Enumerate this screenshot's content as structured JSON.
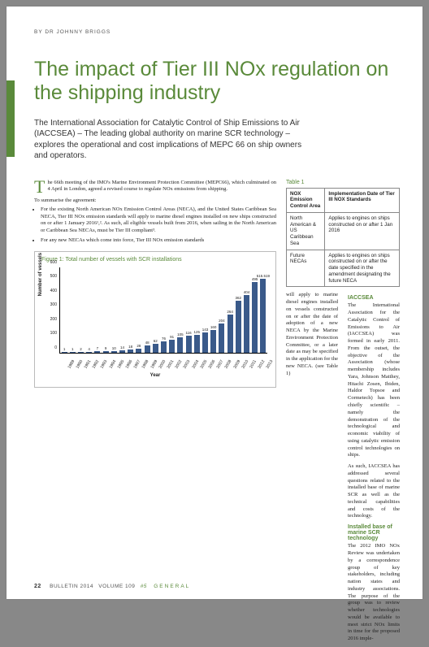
{
  "byline": "BY DR JOHNNY BRIGGS",
  "title": "The impact of Tier III NOx regulation on the shipping industry",
  "subtitle": "The International Association for Catalytic Control of Ship Emissions to Air (IACCSEA) – The leading global authority on marine SCR technology – explores the operational and cost implications of MEPC 66 on ship owners and operators.",
  "intro_first": "T",
  "intro_rest": "he 66th meeting of the IMO's Marine Environment Protection Committee (MEPC66), which culminated on 4 April in London, agreed a revised course to regulate NOx emissions from shipping.",
  "summary_label": "To summarise the agreement:",
  "bullets": [
    "For the existing North American NOx Emission Control Areas (NECA), and the United States Caribbean Sea NECA, Tier III NOx emission standards will apply to marine diesel engines installed on new ships constructed on or after 1 January 2016¹,². As such, all eligible vessels built from 2016, when sailing in the North American or Caribbean Sea NECAs, must be Tier III compliant³.",
    "For any new NECAs which come into force, Tier III NOx emission standards"
  ],
  "table_label": "Table 1",
  "table_headers": [
    "NOX Emission Control Area",
    "Implementation Date of Tier III NOX Standards"
  ],
  "table_rows": [
    [
      "North American & US Caribbean Sea",
      "Applies to engines on ships constructed on or after 1 Jan 2016"
    ],
    [
      "Future NECAs",
      "Applies to engines on ships constructed on or after the date specified in the amendment designating the future NECA"
    ]
  ],
  "col2_para": "will apply to marine diesel engines installed on vessels constructed on or after the date of adoption of a new NECA by the Marine Environment Protection Committee, or a later date as may be specified in the application for the new NECA. (see Table 1)",
  "iaccsea_head": "IACCSEA",
  "iaccsea_para1": "The International Association for the Catalytic Control of Emissions to Air (IACCSEA) was formed in early 2011. From the outset, the objective of the Association (whose membership includes Yara, Johnson Matthey, Hitachi Zosen, Ibiden, Haldor Topsoe and Cormetech) has been chiefly scientific – namely the demonstration of the technological and economic viability of using catalytic emission control technologies on ships.",
  "iaccsea_para2": "As such, IACCSEA has addressed several questions related to the installed base of marine SCR as well as the technical capabilities and costs of the technology.",
  "installed_head": "Installed base of marine SCR technology",
  "installed_para": "The 2012 IMO NOx Review was undertaken by a correspondence group of key stakeholders, including nation states and industry associations. The purpose of the group was to review whether technologies would be available to meet strict NOx limits in time for the proposed 2016 imple-",
  "chart": {
    "title": "Figure 1: Total number of vessels with SCR installations",
    "ylabel": "Number of vessels",
    "xlabel": "Year",
    "ylim": [
      0,
      600
    ],
    "ytick_step": 100,
    "years": [
      "1989",
      "1990",
      "1991",
      "1992",
      "1993",
      "1994",
      "1995",
      "1996",
      "1997",
      "1998",
      "1999",
      "2000",
      "2001",
      "2002",
      "2003",
      "2004",
      "2005",
      "2006",
      "2007",
      "2008",
      "2009",
      "2010",
      "2011",
      "2012",
      "2013"
    ],
    "values": [
      1,
      1,
      2,
      4,
      7,
      9,
      10,
      14,
      18,
      28,
      48,
      62,
      76,
      91,
      105,
      116,
      125,
      143,
      160,
      204,
      264,
      362,
      404,
      495,
      515.519
    ],
    "value_labels": [
      "1",
      "1",
      "2",
      "4",
      "7",
      "9",
      "10",
      "14",
      "18",
      "28",
      "48",
      "62",
      "76",
      "91",
      "105",
      "116",
      "125",
      "143",
      "160",
      "204",
      "264",
      "362",
      "404",
      "495",
      "515.519"
    ],
    "bar_color": "#3a5a8a",
    "label_fontsize": 5
  },
  "footer": {
    "page": "22",
    "bulletin": "BULLETIN 2014",
    "volume": "VOLUME 109",
    "issue": "#5",
    "section": "GENERAL"
  }
}
